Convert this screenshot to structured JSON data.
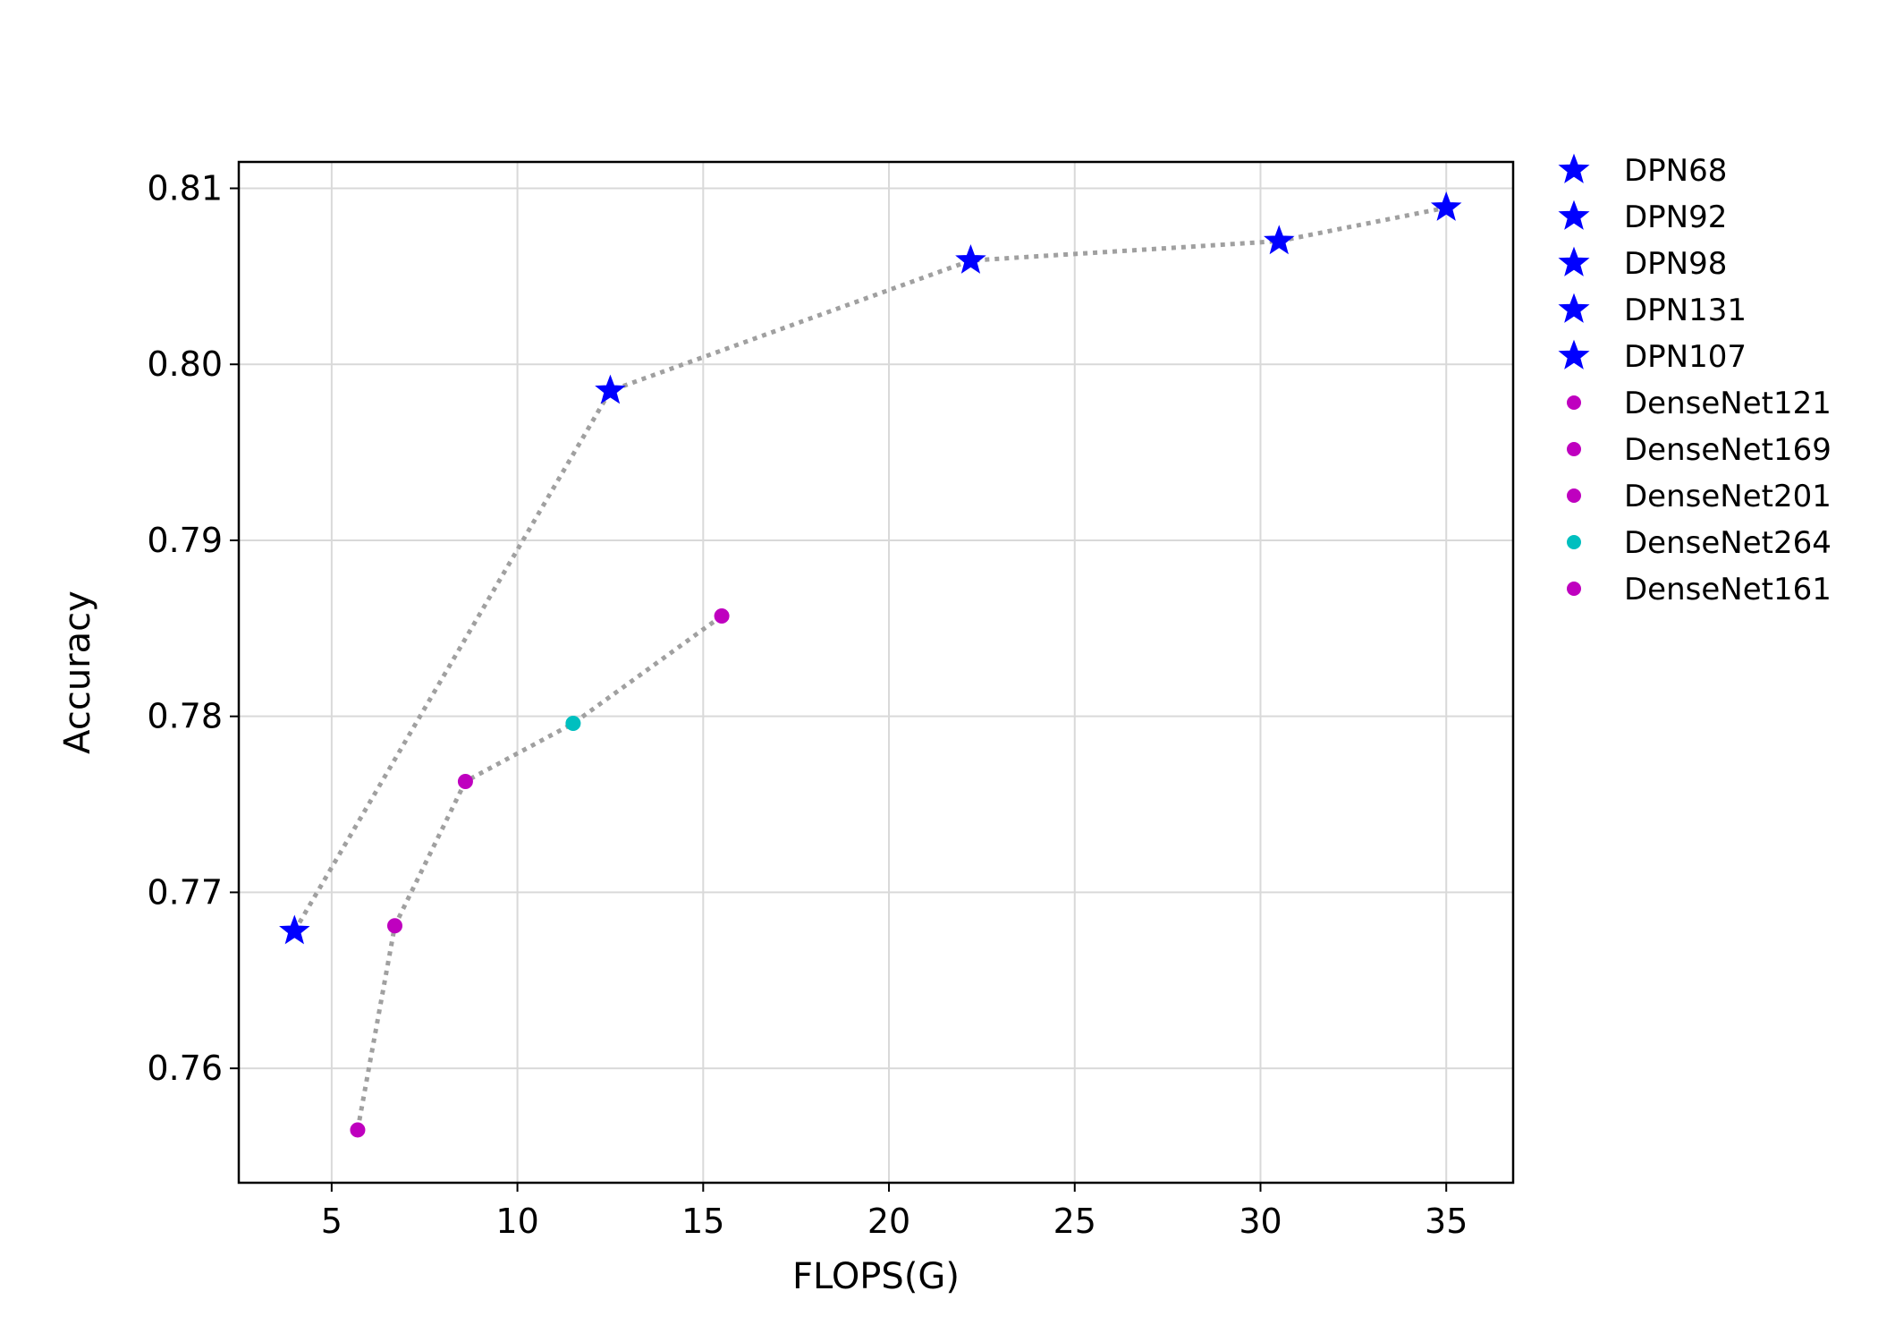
{
  "chart_data": {
    "type": "scatter",
    "title": "",
    "xlabel": "FLOPS(G)",
    "ylabel": "Accuracy",
    "xlim": [
      2.5,
      36.8
    ],
    "ylim": [
      0.7535,
      0.8115
    ],
    "xticks": [
      5,
      10,
      15,
      20,
      25,
      30,
      35
    ],
    "yticks": [
      0.76,
      0.77,
      0.78,
      0.79,
      0.8,
      0.81
    ],
    "xtick_labels": [
      "5",
      "10",
      "15",
      "20",
      "25",
      "30",
      "35"
    ],
    "ytick_labels": [
      "0.76",
      "0.77",
      "0.78",
      "0.79",
      "0.80",
      "0.81"
    ],
    "grid": true,
    "legend_position": "outside-right-top",
    "series": [
      {
        "name": "DPN68",
        "x": 4.0,
        "y": 0.7678,
        "marker": "star",
        "color": "#0000ff"
      },
      {
        "name": "DPN92",
        "x": 12.5,
        "y": 0.7985,
        "marker": "star",
        "color": "#0000ff"
      },
      {
        "name": "DPN98",
        "x": 22.2,
        "y": 0.8059,
        "marker": "star",
        "color": "#0000ff"
      },
      {
        "name": "DPN131",
        "x": 30.5,
        "y": 0.807,
        "marker": "star",
        "color": "#0000ff"
      },
      {
        "name": "DPN107",
        "x": 35.0,
        "y": 0.8089,
        "marker": "star",
        "color": "#0000ff"
      },
      {
        "name": "DenseNet121",
        "x": 5.7,
        "y": 0.7565,
        "marker": "circle",
        "color": "#bf00bf"
      },
      {
        "name": "DenseNet169",
        "x": 6.7,
        "y": 0.7681,
        "marker": "circle",
        "color": "#bf00bf"
      },
      {
        "name": "DenseNet201",
        "x": 8.6,
        "y": 0.7763,
        "marker": "circle",
        "color": "#bf00bf"
      },
      {
        "name": "DenseNet264",
        "x": 11.5,
        "y": 0.7796,
        "marker": "circle",
        "color": "#00bfbf"
      },
      {
        "name": "DenseNet161",
        "x": 15.5,
        "y": 0.7857,
        "marker": "circle",
        "color": "#bf00bf"
      }
    ],
    "connector_lines": [
      {
        "series": [
          "DPN68",
          "DPN92",
          "DPN98",
          "DPN131",
          "DPN107"
        ],
        "style": "dotted",
        "color": "#a0a0a0"
      },
      {
        "series": [
          "DenseNet121",
          "DenseNet169",
          "DenseNet201",
          "DenseNet264",
          "DenseNet161"
        ],
        "style": "dotted",
        "color": "#a0a0a0"
      }
    ]
  }
}
